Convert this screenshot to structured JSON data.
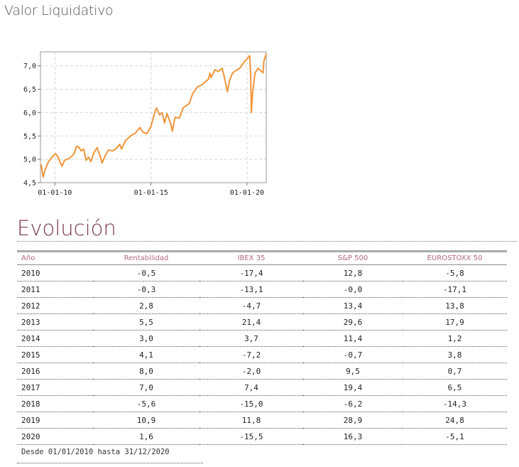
{
  "header": {
    "title": "Valor Liquidativo"
  },
  "colors": {
    "line": "#f0953a",
    "accent": "#7a3b52",
    "header_text": "#b36a7a",
    "grid": "#d6d6d6"
  },
  "chart_data": {
    "type": "line",
    "title": "Valor Liquidativo",
    "xlabel": "",
    "ylabel": "",
    "xlim": [
      "2009-04-01",
      "2020-12-31"
    ],
    "ylim": [
      4.5,
      7.3
    ],
    "x_ticks": [
      "01-01-10",
      "01-01-15",
      "01-01-20"
    ],
    "y_ticks": [
      "4,5",
      "5,0",
      "5,5",
      "6,0",
      "6,5",
      "7,0"
    ],
    "grid": true,
    "series": [
      {
        "color": "#f0953a",
        "points": [
          [
            "2009-04-15",
            4.88
          ],
          [
            "2009-05-20",
            4.62
          ],
          [
            "2009-07-01",
            4.78
          ],
          [
            "2009-09-01",
            4.95
          ],
          [
            "2009-12-01",
            5.08
          ],
          [
            "2010-01-15",
            5.12
          ],
          [
            "2010-03-01",
            5.05
          ],
          [
            "2010-05-15",
            4.85
          ],
          [
            "2010-07-01",
            4.98
          ],
          [
            "2010-10-01",
            5.02
          ],
          [
            "2011-01-01",
            5.12
          ],
          [
            "2011-02-15",
            5.28
          ],
          [
            "2011-04-01",
            5.26
          ],
          [
            "2011-05-15",
            5.18
          ],
          [
            "2011-07-01",
            5.22
          ],
          [
            "2011-08-15",
            4.98
          ],
          [
            "2011-10-01",
            5.05
          ],
          [
            "2011-11-15",
            4.95
          ],
          [
            "2012-01-15",
            5.15
          ],
          [
            "2012-03-15",
            5.25
          ],
          [
            "2012-05-15",
            5.05
          ],
          [
            "2012-06-15",
            4.92
          ],
          [
            "2012-08-15",
            5.08
          ],
          [
            "2012-10-15",
            5.2
          ],
          [
            "2012-12-31",
            5.18
          ],
          [
            "2013-03-01",
            5.22
          ],
          [
            "2013-05-15",
            5.32
          ],
          [
            "2013-06-20",
            5.22
          ],
          [
            "2013-09-01",
            5.4
          ],
          [
            "2013-12-31",
            5.52
          ],
          [
            "2014-03-01",
            5.55
          ],
          [
            "2014-06-01",
            5.68
          ],
          [
            "2014-08-01",
            5.58
          ],
          [
            "2014-10-15",
            5.55
          ],
          [
            "2014-12-31",
            5.7
          ],
          [
            "2015-03-15",
            6.02
          ],
          [
            "2015-04-15",
            6.1
          ],
          [
            "2015-06-15",
            5.95
          ],
          [
            "2015-08-01",
            6.0
          ],
          [
            "2015-09-15",
            5.78
          ],
          [
            "2015-11-01",
            5.98
          ],
          [
            "2016-01-15",
            5.75
          ],
          [
            "2016-02-10",
            5.6
          ],
          [
            "2016-04-01",
            5.9
          ],
          [
            "2016-06-24",
            5.88
          ],
          [
            "2016-09-01",
            6.1
          ],
          [
            "2016-12-31",
            6.2
          ],
          [
            "2017-03-01",
            6.4
          ],
          [
            "2017-06-01",
            6.55
          ],
          [
            "2017-09-01",
            6.6
          ],
          [
            "2017-12-31",
            6.72
          ],
          [
            "2018-01-25",
            6.85
          ],
          [
            "2018-02-15",
            6.75
          ],
          [
            "2018-05-01",
            6.92
          ],
          [
            "2018-07-01",
            6.88
          ],
          [
            "2018-09-15",
            6.95
          ],
          [
            "2018-10-15",
            6.82
          ],
          [
            "2018-12-24",
            6.45
          ],
          [
            "2019-02-01",
            6.68
          ],
          [
            "2019-04-01",
            6.85
          ],
          [
            "2019-06-01",
            6.9
          ],
          [
            "2019-08-15",
            6.95
          ],
          [
            "2019-10-15",
            7.05
          ],
          [
            "2019-12-31",
            7.15
          ],
          [
            "2020-02-20",
            7.22
          ],
          [
            "2020-03-10",
            6.8
          ],
          [
            "2020-03-23",
            6.0
          ],
          [
            "2020-04-15",
            6.4
          ],
          [
            "2020-06-01",
            6.85
          ],
          [
            "2020-08-01",
            6.95
          ],
          [
            "2020-09-15",
            6.9
          ],
          [
            "2020-10-30",
            6.85
          ],
          [
            "2020-11-15",
            7.1
          ],
          [
            "2020-12-31",
            7.25
          ]
        ]
      }
    ]
  },
  "section": {
    "title": "Evolución"
  },
  "table": {
    "headers": [
      "Año",
      "Rentabilidad",
      "IBEX 35",
      "S&P 500",
      "EUROSTOXX 50"
    ],
    "rows": [
      [
        "2010",
        "-0,5",
        "-17,4",
        "12,8",
        "-5,8"
      ],
      [
        "2011",
        "-0,3",
        "-13,1",
        "-0,0",
        "-17,1"
      ],
      [
        "2012",
        "2,8",
        "-4,7",
        "13,4",
        "13,8"
      ],
      [
        "2013",
        "5,5",
        "21,4",
        "29,6",
        "17,9"
      ],
      [
        "2014",
        "3,0",
        "3,7",
        "11,4",
        "1,2"
      ],
      [
        "2015",
        "4,1",
        "-7,2",
        "-0,7",
        "3,8"
      ],
      [
        "2016",
        "8,0",
        "-2,0",
        "9,5",
        "0,7"
      ],
      [
        "2017",
        "7,0",
        "7,4",
        "19,4",
        "6,5"
      ],
      [
        "2018",
        "-5,6",
        "-15,0",
        "-6,2",
        "-14,3"
      ],
      [
        "2019",
        "10,9",
        "11,8",
        "28,9",
        "24,8"
      ],
      [
        "2020",
        "1,6",
        "-15,5",
        "16,3",
        "-5,1"
      ]
    ],
    "footnote": "Desde 01/01/2010 hasta 31/12/2020"
  }
}
